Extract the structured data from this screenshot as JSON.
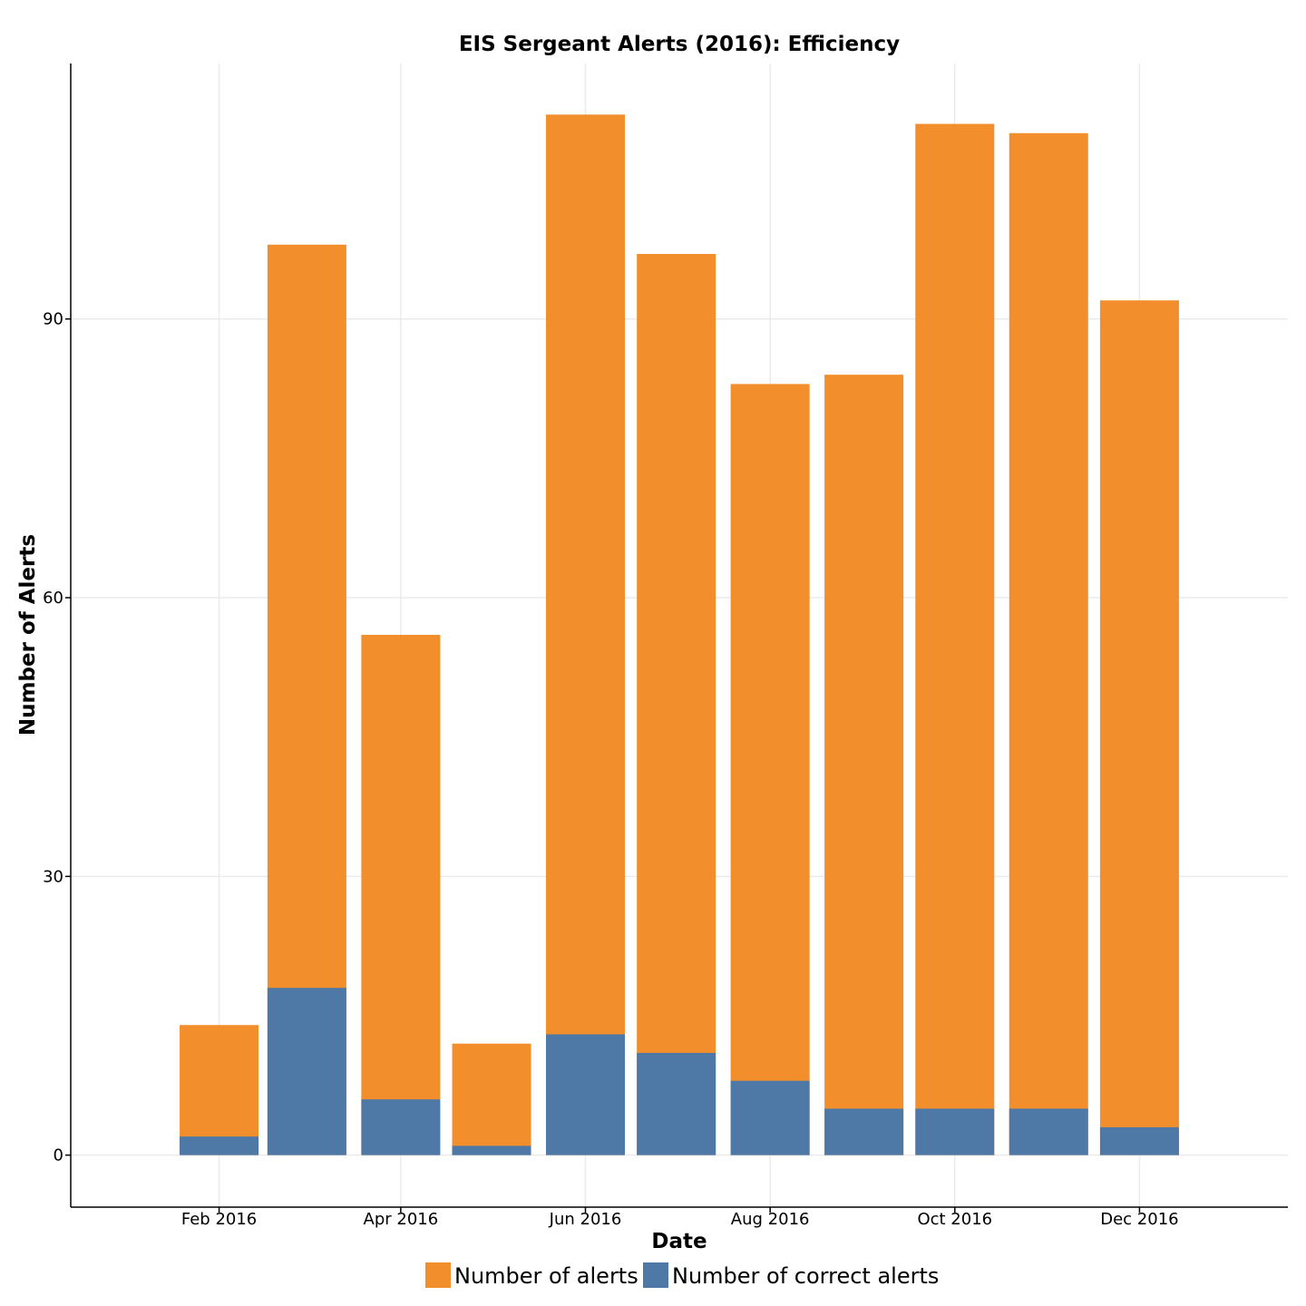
{
  "chart_data": {
    "type": "bar",
    "title": "EIS Sergeant Alerts (2016): Efficiency",
    "xlabel": "Date",
    "ylabel": "Number of Alerts",
    "x": [
      "2016-02-01",
      "2016-03-01",
      "2016-04-01",
      "2016-05-01",
      "2016-06-01",
      "2016-07-01",
      "2016-08-01",
      "2016-09-01",
      "2016-10-01",
      "2016-11-01",
      "2016-12-01"
    ],
    "xlim": [
      "2015-12-14",
      "2017-01-19"
    ],
    "ylim": [
      -5.6,
      117.5
    ],
    "x_ticks": [
      {
        "date": "2016-02-01",
        "label": "Feb 2016"
      },
      {
        "date": "2016-04-01",
        "label": "Apr 2016"
      },
      {
        "date": "2016-06-01",
        "label": "Jun 2016"
      },
      {
        "date": "2016-08-01",
        "label": "Aug 2016"
      },
      {
        "date": "2016-10-01",
        "label": "Oct 2016"
      },
      {
        "date": "2016-12-01",
        "label": "Dec 2016"
      }
    ],
    "y_ticks": [
      0,
      30,
      60,
      90
    ],
    "grid": true,
    "overlay": true,
    "legend_position": "bottom",
    "series": [
      {
        "name": "Number of alerts",
        "color": "#F28E2B",
        "values": [
          14,
          98,
          56,
          12,
          112,
          97,
          83,
          84,
          111,
          110,
          92
        ]
      },
      {
        "name": "Number of correct alerts",
        "color": "#4E79A7",
        "values": [
          2,
          18,
          6,
          1,
          13,
          11,
          8,
          5,
          5,
          5,
          3
        ]
      }
    ]
  }
}
